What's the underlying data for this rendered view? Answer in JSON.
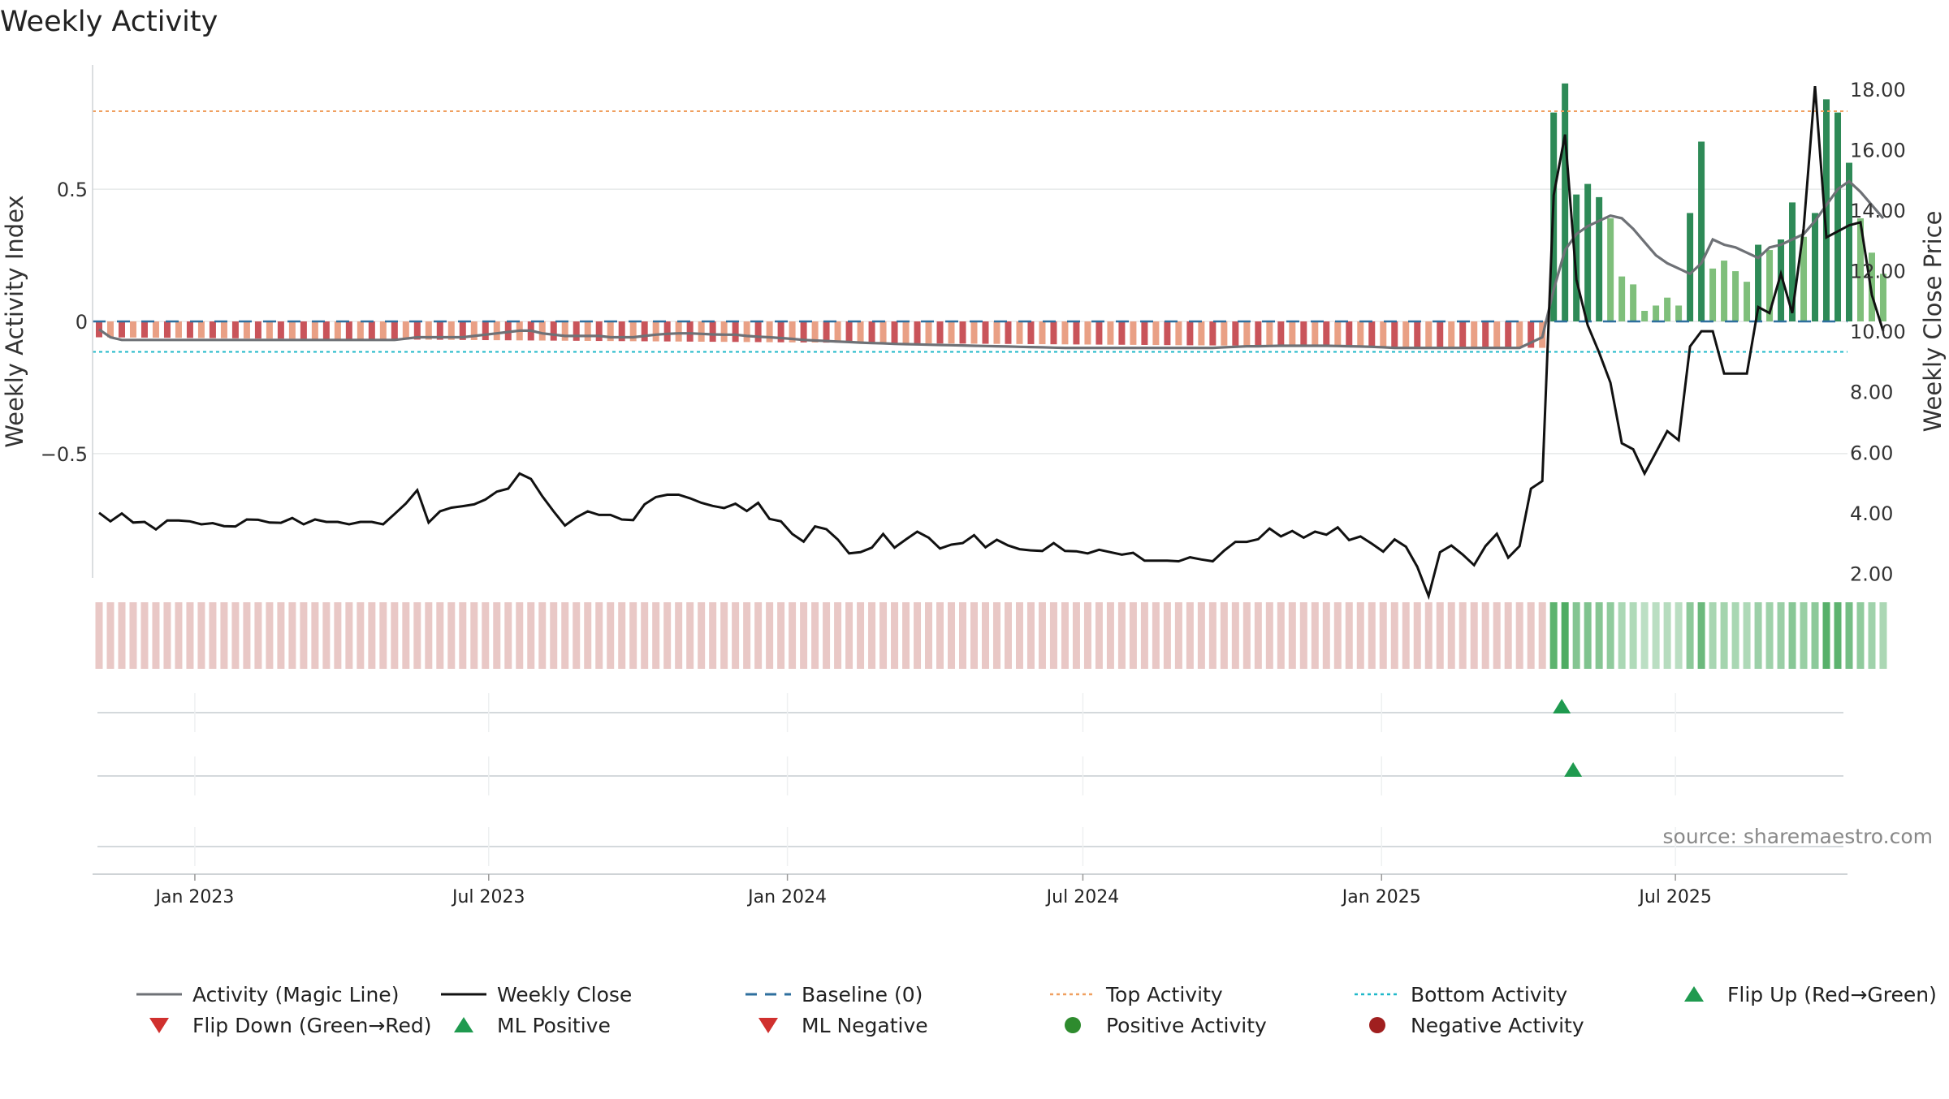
{
  "colors": {
    "magic_line": "#6e7176",
    "close_line": "#111111",
    "baseline": "#2e6f9e",
    "top_activity": "#f0a060",
    "bottom_activity": "#1fb8c9",
    "flip_up": "#1f9a4f",
    "flip_down": "#d0302e",
    "ml_positive": "#1f9a4f",
    "ml_negative": "#d0302e",
    "positive_activity": "#2e8b2e",
    "negative_activity": "#a01f1f",
    "bar_dark_green": "#2e8a57",
    "bar_light_green": "#7fbf7b",
    "bar_dark_red": "#c9545a",
    "bar_light_red": "#e9a085",
    "strip_red": "#e9c8c6",
    "strip_green": "#4fac63",
    "grid": "#e6e9ea"
  },
  "source_text": "source: sharemaestro.com",
  "chart_data": {
    "type": "bar",
    "title": "Weekly Activity",
    "ylabel": "Weekly Activity Index",
    "y2label": "Weekly Close Price",
    "xlabel": "",
    "ylim": [
      -0.97,
      0.97
    ],
    "y2lim": [
      1.85,
      18.8
    ],
    "yticks": [
      {
        "value": 0.5,
        "label": "0.5"
      },
      {
        "value": 0,
        "label": "0"
      },
      {
        "value": -0.5,
        "label": "−0.5"
      }
    ],
    "y2ticks": [
      "18.00",
      "16.00",
      "14.00",
      "12.00",
      "10.00",
      "8.00",
      "6.00",
      "4.00",
      "2.00"
    ],
    "xticks": [
      {
        "date": "2023-01-01",
        "label": "Jan 2023"
      },
      {
        "date": "2023-07-01",
        "label": "Jul 2023"
      },
      {
        "date": "2024-01-01",
        "label": "Jan 2024"
      },
      {
        "date": "2024-07-01",
        "label": "Jul 2024"
      },
      {
        "date": "2025-01-01",
        "label": "Jan 2025"
      },
      {
        "date": "2025-07-01",
        "label": "Jul 2025"
      }
    ],
    "x_start": "2022-10-30",
    "x_end": "2025-10-15",
    "week_start": "2022-11-03",
    "top_activity": 0.795,
    "bottom_activity": -0.115,
    "baseline": 0,
    "grid": true,
    "legend_position": "bottom",
    "legend": [
      {
        "label": "Activity (Magic Line)",
        "type": "line",
        "color_key": "magic_line"
      },
      {
        "label": "Weekly Close",
        "type": "line",
        "color_key": "close_line"
      },
      {
        "label": "Baseline (0)",
        "type": "dashed",
        "color_key": "baseline"
      },
      {
        "label": "Top Activity",
        "type": "dotted",
        "color_key": "top_activity"
      },
      {
        "label": "Bottom Activity",
        "type": "dotted",
        "color_key": "bottom_activity"
      },
      {
        "label": "Flip Up (Red→Green)",
        "type": "triangle-up",
        "color_key": "flip_up"
      },
      {
        "label": "Flip Down (Green→Red)",
        "type": "triangle-down",
        "color_key": "flip_down"
      },
      {
        "label": "ML Positive",
        "type": "triangle-up",
        "color_key": "ml_positive"
      },
      {
        "label": "ML Negative",
        "type": "triangle-down",
        "color_key": "ml_negative"
      },
      {
        "label": "Positive Activity",
        "type": "circle",
        "color_key": "positive_activity"
      },
      {
        "label": "Negative Activity",
        "type": "circle",
        "color_key": "negative_activity"
      }
    ],
    "flip_up_weeks": [
      1
    ],
    "ml_positive_weeks": [
      2
    ],
    "positive_activity": [
      0.79,
      0.9,
      0.48,
      0.52,
      0.47,
      0.39,
      0.17,
      0.14,
      0.04,
      0.06,
      0.09,
      0.06,
      0.41,
      0.68,
      0.2,
      0.23,
      0.19,
      0.15,
      0.29,
      0.27,
      0.31,
      0.45,
      0.32,
      0.41,
      0.84,
      0.79,
      0.6,
      0.39,
      0.26,
      0.18
    ],
    "negative_start": -0.06,
    "negative_end": -0.1,
    "close_prices": [
      4.0,
      3.72,
      3.98,
      3.68,
      3.7,
      3.45,
      3.75,
      3.75,
      3.72,
      3.62,
      3.66,
      3.56,
      3.55,
      3.78,
      3.77,
      3.68,
      3.67,
      3.83,
      3.62,
      3.78,
      3.7,
      3.7,
      3.62,
      3.7,
      3.7,
      3.62,
      3.96,
      4.31,
      4.75,
      3.68,
      4.05,
      4.17,
      4.22,
      4.28,
      4.44,
      4.7,
      4.8,
      5.3,
      5.12,
      4.55,
      4.05,
      3.58,
      3.85,
      4.05,
      3.93,
      3.93,
      3.78,
      3.76,
      4.28,
      4.52,
      4.6,
      4.6,
      4.48,
      4.33,
      4.23,
      4.16,
      4.3,
      4.06,
      4.33,
      3.8,
      3.72,
      3.3,
      3.05,
      3.55,
      3.46,
      3.12,
      2.66,
      2.7,
      2.85,
      3.3,
      2.85,
      3.12,
      3.38,
      3.18,
      2.82,
      2.95,
      3.0,
      3.26,
      2.86,
      3.11,
      2.92,
      2.8,
      2.76,
      2.74,
      3.0,
      2.74,
      2.73,
      2.66,
      2.78,
      2.7,
      2.62,
      2.68,
      2.42,
      2.42,
      2.42,
      2.4,
      2.53,
      2.46,
      2.4,
      2.75,
      3.04,
      3.04,
      3.13,
      3.48,
      3.22,
      3.4,
      3.18,
      3.38,
      3.28,
      3.52,
      3.1,
      3.22,
      2.98,
      2.72,
      3.12,
      2.88,
      2.22,
      1.25,
      2.7,
      2.92,
      2.62,
      2.27,
      2.9,
      3.31,
      2.52,
      2.9,
      4.8,
      5.05,
      14.5,
      16.5,
      11.7,
      10.2,
      9.3,
      8.3,
      6.3,
      6.1,
      5.3,
      6.0,
      6.7,
      6.4,
      9.5,
      10.0,
      10.0,
      8.6,
      8.6,
      8.6,
      10.8,
      10.6,
      11.9,
      10.6,
      13.4,
      18.1,
      13.1,
      13.3,
      13.5,
      13.6,
      11.2,
      10.0
    ],
    "magic_line": [
      -0.03,
      -0.06,
      -0.07,
      -0.07,
      -0.07,
      -0.07,
      -0.07,
      -0.07,
      -0.07,
      -0.07,
      -0.07,
      -0.07,
      -0.07,
      -0.07,
      -0.07,
      -0.07,
      -0.07,
      -0.07,
      -0.07,
      -0.07,
      -0.07,
      -0.07,
      -0.07,
      -0.07,
      -0.07,
      -0.07,
      -0.07,
      -0.065,
      -0.06,
      -0.06,
      -0.06,
      -0.06,
      -0.06,
      -0.055,
      -0.05,
      -0.045,
      -0.04,
      -0.035,
      -0.035,
      -0.045,
      -0.05,
      -0.055,
      -0.055,
      -0.055,
      -0.055,
      -0.06,
      -0.06,
      -0.06,
      -0.055,
      -0.05,
      -0.047,
      -0.045,
      -0.045,
      -0.047,
      -0.049,
      -0.05,
      -0.05,
      -0.055,
      -0.058,
      -0.06,
      -0.063,
      -0.066,
      -0.07,
      -0.072,
      -0.074,
      -0.076,
      -0.078,
      -0.08,
      -0.082,
      -0.083,
      -0.085,
      -0.086,
      -0.087,
      -0.088,
      -0.089,
      -0.09,
      -0.091,
      -0.092,
      -0.093,
      -0.094,
      -0.095,
      -0.096,
      -0.097,
      -0.098,
      -0.099,
      -0.1,
      -0.1,
      -0.1,
      -0.1,
      -0.1,
      -0.1,
      -0.1,
      -0.1,
      -0.1,
      -0.1,
      -0.1,
      -0.1,
      -0.1,
      -0.1,
      -0.098,
      -0.096,
      -0.094,
      -0.094,
      -0.093,
      -0.092,
      -0.092,
      -0.092,
      -0.092,
      -0.092,
      -0.093,
      -0.094,
      -0.095,
      -0.096,
      -0.098,
      -0.1,
      -0.1,
      -0.1,
      -0.1,
      -0.1,
      -0.1,
      -0.1,
      -0.1,
      -0.1,
      -0.1,
      -0.1,
      -0.1,
      -0.08,
      -0.06,
      0.12,
      0.27,
      0.33,
      0.36,
      0.38,
      0.4,
      0.39,
      0.35,
      0.3,
      0.25,
      0.22,
      0.2,
      0.18,
      0.22,
      0.31,
      0.29,
      0.28,
      0.26,
      0.24,
      0.28,
      0.29,
      0.31,
      0.33,
      0.38,
      0.44,
      0.5,
      0.53,
      0.49,
      0.44,
      0.39
    ]
  }
}
